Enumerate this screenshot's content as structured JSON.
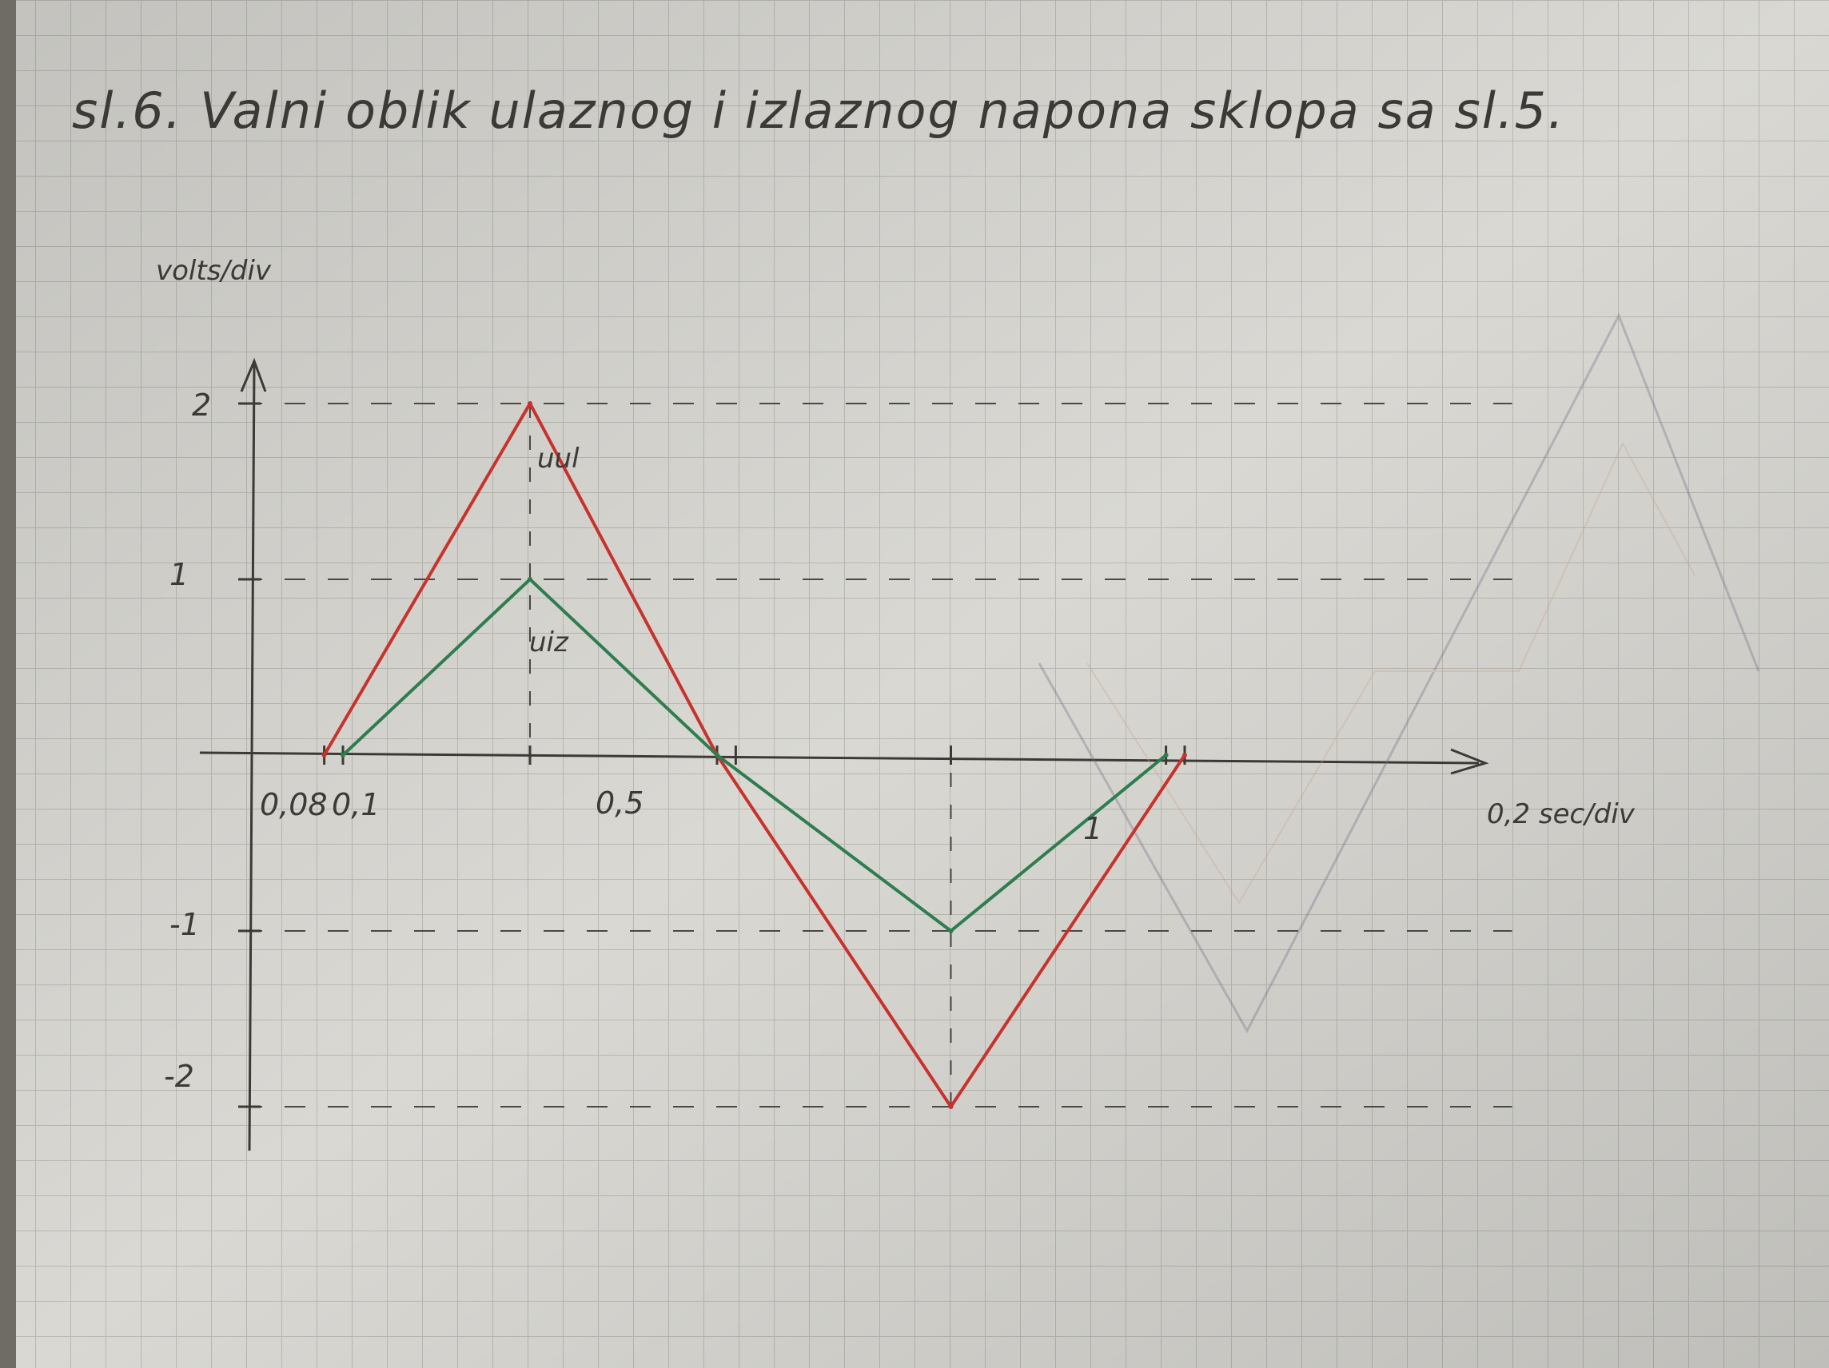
{
  "chart_data": {
    "type": "line",
    "title": "sl.6. Valni oblik ulaznog i izlaznog napona sklopa sa sl.5.",
    "ylabel": "volts/div",
    "xlabel": "0,2 sec/div",
    "x_tick_labels": [
      "0,08",
      "0,1",
      "0,5",
      "1"
    ],
    "y_ticks": [
      2,
      1,
      -1,
      -2
    ],
    "y_tick_labels": [
      "2",
      "1",
      "-1",
      "-2"
    ],
    "xlim": [
      0,
      1.25
    ],
    "ylim": [
      -2.3,
      2.3
    ],
    "grid": true,
    "series": [
      {
        "name": "uul",
        "color": "#c8322d",
        "x": [
          0.08,
          0.3,
          0.5,
          0.75,
          1.0
        ],
        "y": [
          0,
          2,
          0,
          -2,
          0
        ]
      },
      {
        "name": "uiz",
        "color": "#2e7d4f",
        "x": [
          0.1,
          0.3,
          0.5,
          0.75,
          0.98
        ],
        "y": [
          0,
          1,
          0,
          -1,
          0
        ]
      }
    ]
  }
}
